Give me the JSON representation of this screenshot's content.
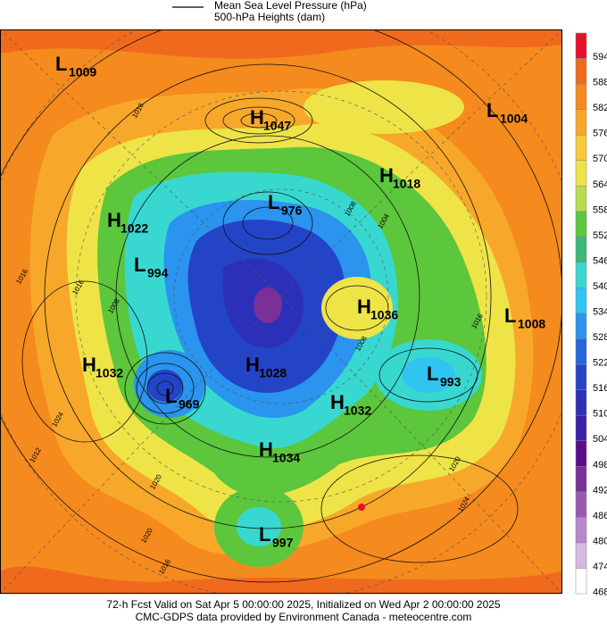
{
  "legend": {
    "items": [
      "Mean Sea Level Pressure (hPa)",
      "500-hPa Heights (dam)"
    ]
  },
  "centers": [
    {
      "type": "L",
      "value": 1009
    },
    {
      "type": "H",
      "value": 1047
    },
    {
      "type": "L",
      "value": 1004
    },
    {
      "type": "H",
      "value": 1018
    },
    {
      "type": "L",
      "value": 976
    },
    {
      "type": "H",
      "value": 1022
    },
    {
      "type": "L",
      "value": 994
    },
    {
      "type": "H",
      "value": 1036
    },
    {
      "type": "L",
      "value": 1008
    },
    {
      "type": "H",
      "value": 1032
    },
    {
      "type": "H",
      "value": 1028
    },
    {
      "type": "L",
      "value": 993
    },
    {
      "type": "L",
      "value": 969
    },
    {
      "type": "H",
      "value": 1032
    },
    {
      "type": "H",
      "value": 1034
    },
    {
      "type": "L",
      "value": 997
    }
  ],
  "isobar_labels": [
    1016,
    1016,
    1016,
    1008,
    1008,
    1004,
    1008,
    1016,
    1020,
    1024,
    1024,
    1012,
    1020,
    1020,
    1016
  ],
  "colorbar": {
    "values": [
      594,
      588,
      582,
      576,
      570,
      564,
      558,
      552,
      546,
      540,
      534,
      528,
      522,
      516,
      510,
      504,
      498,
      492,
      486,
      480,
      474,
      468
    ],
    "colors": [
      "#e8102a",
      "#f06a1e",
      "#f58a1e",
      "#f7a82a",
      "#f8c838",
      "#eee448",
      "#b8dc4c",
      "#5cc63c",
      "#3ab878",
      "#38d8d0",
      "#30c4f0",
      "#2a94ee",
      "#2466de",
      "#2444c8",
      "#2c30b8",
      "#3a20a8",
      "#5a0c8a",
      "#7a3098",
      "#9a58b4",
      "#b888cc",
      "#d6b8e2",
      "#ffffff"
    ]
  },
  "footer": [
    "72-h Fcst Valid on Sat Apr  5 00:00:00 2025, Initialized on Wed Apr  2 00:00:00 2025",
    "CMC-GDPS data provided by Environment Canada - meteocentre.com"
  ]
}
